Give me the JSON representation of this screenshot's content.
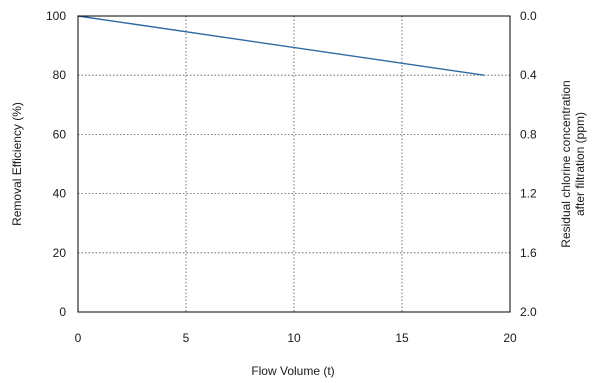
{
  "chart_data": {
    "type": "line",
    "title": "",
    "xlabel": "Flow Volume (t)",
    "ylabel": "Removal Efficiency (%)",
    "y2label_lines": [
      "Residual chlorine concentration",
      "after filtration (ppm)"
    ],
    "xlim": [
      0,
      20
    ],
    "ylim": [
      0,
      100
    ],
    "y2lim": [
      0.0,
      2.0
    ],
    "y2_inverted": true,
    "x_ticks": [
      "0",
      "5",
      "10",
      "15",
      "20"
    ],
    "y_ticks": [
      "0",
      "20",
      "40",
      "60",
      "80",
      "100"
    ],
    "y2_ticks": [
      "2.0",
      "1.6",
      "1.2",
      "0.8",
      "0.4",
      "0.0"
    ],
    "grid": true,
    "legend": "none",
    "series": [
      {
        "x": [
          0,
          18.8
        ],
        "y": [
          100,
          80
        ],
        "color": "#2f6aa3"
      }
    ]
  }
}
